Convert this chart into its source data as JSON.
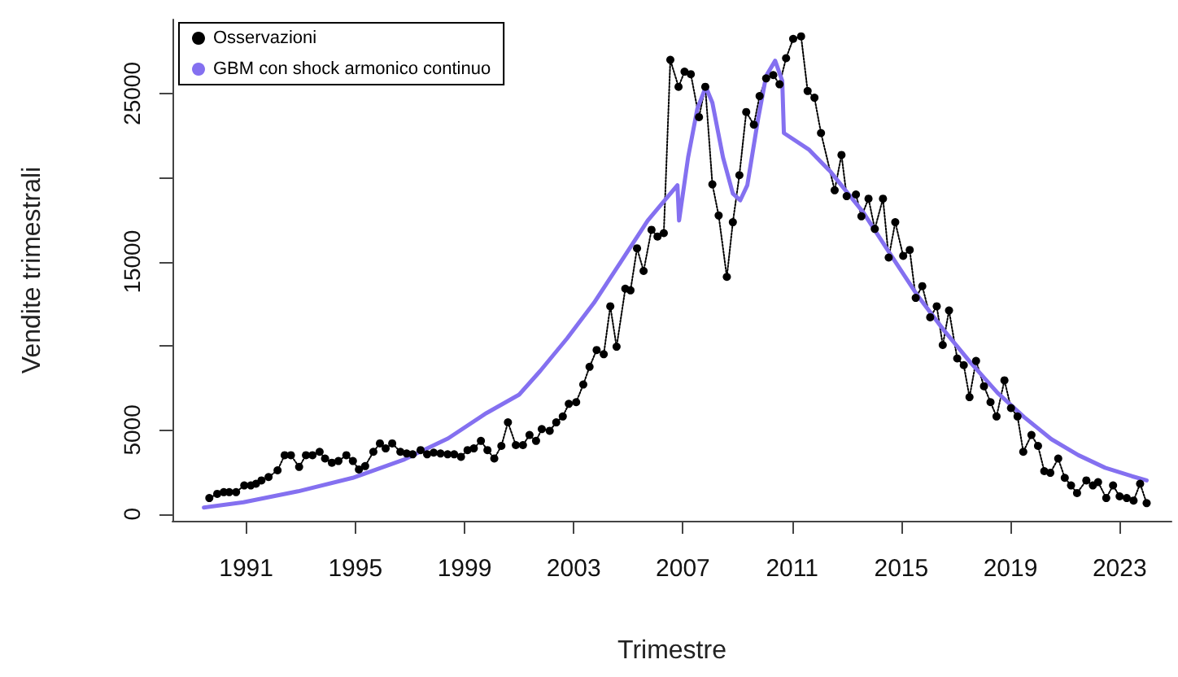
{
  "chart_data": {
    "type": "line",
    "xlabel": "Trimestre",
    "ylabel": "Vendite trimestrali",
    "xlim": [
      1988.3,
      2024.9
    ],
    "ylim": [
      -400,
      29400
    ],
    "xticks": [
      1991,
      1995,
      1999,
      2003,
      2007,
      2011,
      2015,
      2019,
      2023
    ],
    "yticks": [
      0,
      5000,
      {
        "value": 10000,
        "label": null
      },
      15000,
      {
        "value": 20000,
        "label": null
      },
      25000
    ],
    "grid": false,
    "legend": "top left",
    "series": [
      {
        "name": "Osservazioni",
        "color": "#000000",
        "marker": "circle",
        "line_style": "dotted",
        "x": [
          1989.65,
          1989.94,
          1990.18,
          1990.38,
          1990.63,
          1990.93,
          1991.17,
          1991.36,
          1991.56,
          1991.82,
          1992.15,
          1992.41,
          1992.64,
          1992.94,
          1993.19,
          1993.43,
          1993.69,
          1993.89,
          1994.14,
          1994.38,
          1994.67,
          1994.91,
          1995.13,
          1995.36,
          1995.66,
          1995.9,
          1996.11,
          1996.35,
          1996.65,
          1996.88,
          1997.1,
          1997.39,
          1997.63,
          1997.87,
          1998.12,
          1998.38,
          1998.62,
          1998.87,
          1999.11,
          1999.34,
          1999.6,
          1999.84,
          2000.09,
          2000.35,
          2000.59,
          2000.88,
          2001.14,
          2001.38,
          2001.62,
          2001.83,
          2002.12,
          2002.36,
          2002.6,
          2002.82,
          2003.09,
          2003.35,
          2003.58,
          2003.84,
          2004.1,
          2004.34,
          2004.57,
          2004.89,
          2005.08,
          2005.32,
          2005.56,
          2005.85,
          2006.07,
          2006.3,
          2006.54,
          2006.84,
          2007.06,
          2007.29,
          2007.59,
          2007.82,
          2008.08,
          2008.31,
          2008.61,
          2008.83,
          2009.07,
          2009.32,
          2009.6,
          2009.81,
          2010.05,
          2010.31,
          2010.54,
          2010.78,
          2011.04,
          2011.33,
          2011.57,
          2011.82,
          2012.06,
          2012.56,
          2012.81,
          2013.0,
          2013.34,
          2013.54,
          2013.8,
          2014.03,
          2014.33,
          2014.54,
          2014.78,
          2015.07,
          2015.31,
          2015.53,
          2015.77,
          2016.06,
          2016.3,
          2016.52,
          2016.75,
          2017.05,
          2017.29,
          2017.5,
          2017.74,
          2018.03,
          2018.27,
          2018.49,
          2018.78,
          2019.02,
          2019.26,
          2019.47,
          2019.77,
          2020.01,
          2020.24,
          2020.46,
          2020.75,
          2020.99,
          2021.22,
          2021.44,
          2021.78,
          2022.02,
          2022.21,
          2022.51,
          2022.76,
          2023.0,
          2023.26,
          2023.51,
          2023.75,
          2023.99
        ],
        "values": [
          950,
          1200,
          1300,
          1300,
          1300,
          1700,
          1700,
          1800,
          2000,
          2200,
          2600,
          3500,
          3500,
          2800,
          3500,
          3500,
          3700,
          3300,
          3050,
          3150,
          3500,
          3150,
          2650,
          2850,
          3700,
          4200,
          3900,
          4200,
          3700,
          3600,
          3550,
          3800,
          3550,
          3650,
          3600,
          3550,
          3550,
          3400,
          3800,
          3900,
          4350,
          3800,
          3300,
          4050,
          5450,
          4100,
          4100,
          4700,
          4350,
          5050,
          4950,
          5450,
          5800,
          6550,
          6650,
          7700,
          8750,
          9750,
          9500,
          12350,
          9950,
          13400,
          13300,
          15800,
          14450,
          16900,
          16500,
          16700,
          27000,
          25400,
          26300,
          26150,
          23600,
          25400,
          19600,
          17750,
          14100,
          17350,
          20150,
          23900,
          23150,
          24850,
          25900,
          26100,
          25550,
          27100,
          28250,
          28400,
          25150,
          24750,
          22650,
          19250,
          21350,
          18900,
          19000,
          17700,
          18750,
          16950,
          18750,
          15250,
          17350,
          15350,
          15700,
          12850,
          13550,
          11700,
          12350,
          10050,
          12100,
          9250,
          8850,
          6950,
          9100,
          7600,
          6650,
          5800,
          7950,
          6300,
          5800,
          3700,
          4700,
          4050,
          2550,
          2450,
          3300,
          2150,
          1700,
          1250,
          2000,
          1700,
          1900,
          950,
          1700,
          1050,
          950,
          800,
          1800,
          650
        ]
      },
      {
        "name": "GBM con shock armonico continuo",
        "color": "#8470f0",
        "marker": "none",
        "line_style": "solid",
        "x": [
          1989.45,
          1990.9,
          1992.9,
          1994.9,
          1996.8,
          1998.4,
          1999.8,
          2001.0,
          2001.77,
          2002.76,
          2003.74,
          2004.73,
          2005.71,
          2006.8,
          2006.86,
          2007.19,
          2007.53,
          2007.84,
          2008.08,
          2008.47,
          2008.83,
          2009.1,
          2009.36,
          2009.75,
          2010.05,
          2010.38,
          2010.64,
          2010.7,
          2011.63,
          2012.41,
          2013.6,
          2014.58,
          2015.57,
          2016.55,
          2017.54,
          2018.53,
          2019.51,
          2020.5,
          2021.49,
          2022.47,
          2023.45,
          2023.99
        ],
        "values": [
          390,
          700,
          1350,
          2150,
          3250,
          4500,
          6000,
          7100,
          8500,
          10450,
          12550,
          15000,
          17450,
          19550,
          17450,
          21200,
          24100,
          25400,
          24450,
          21200,
          19050,
          18650,
          19550,
          23450,
          26050,
          26950,
          25750,
          22650,
          21650,
          20350,
          17950,
          15500,
          13050,
          10950,
          9000,
          7200,
          5750,
          4450,
          3500,
          2750,
          2250,
          2000
        ]
      }
    ]
  }
}
